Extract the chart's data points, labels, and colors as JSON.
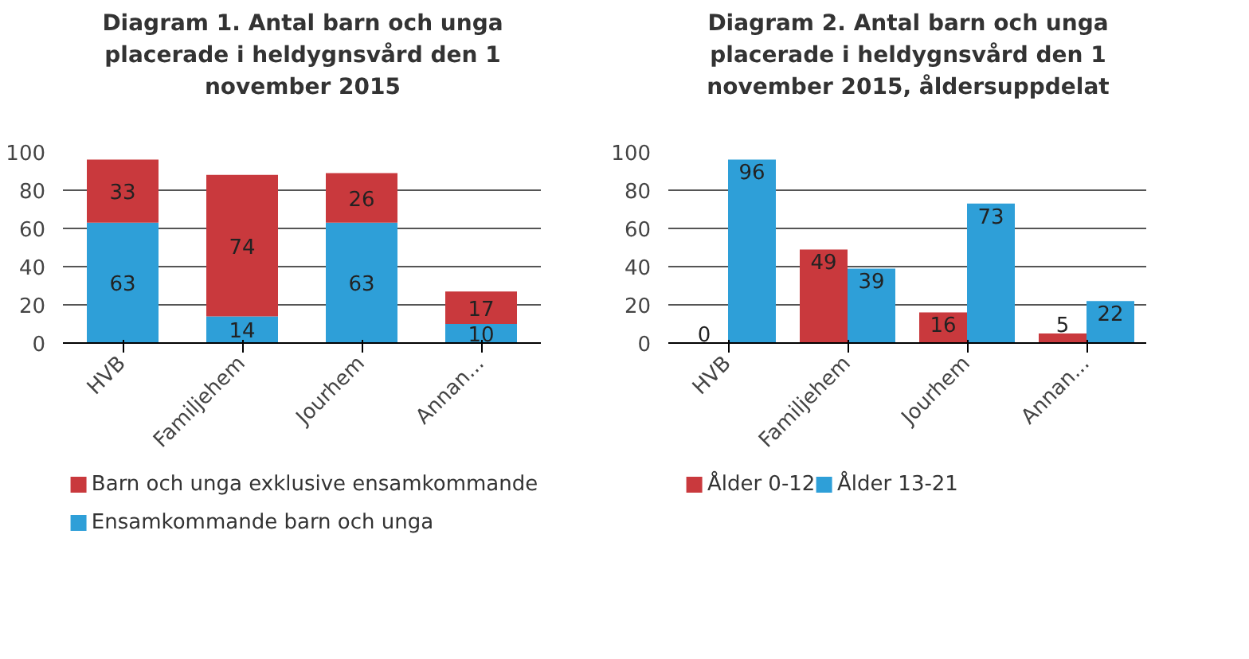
{
  "chart_data": [
    {
      "type": "bar",
      "title": "Diagram 1. Antal barn och unga placerade i heldygnsvård den 1 november 2015",
      "categories": [
        "HVB",
        "Familjehem",
        "Jourhem",
        "Annan..."
      ],
      "stacked": true,
      "series": [
        {
          "name": "Ensamkommande barn och unga",
          "color": "#2e9fd8",
          "values": [
            63,
            14,
            63,
            10
          ]
        },
        {
          "name": "Barn och unga exklusive ensamkommande",
          "color": "#c9393d",
          "values": [
            33,
            74,
            26,
            17
          ]
        }
      ],
      "ylim": [
        0,
        100
      ],
      "yticks": [
        0,
        20,
        40,
        60,
        80,
        100
      ],
      "grid": "y",
      "legend": "bottom",
      "data_labels": true
    },
    {
      "type": "bar",
      "title": "Diagram 2. Antal barn och unga placerade i heldygnsvård den 1 november 2015, åldersuppdelat",
      "categories": [
        "HVB",
        "Familjehem",
        "Jourhem",
        "Annan..."
      ],
      "series": [
        {
          "name": "Ålder 0-12",
          "color": "#c9393d",
          "values": [
            0,
            49,
            16,
            5
          ]
        },
        {
          "name": "Ålder 13-21",
          "color": "#2e9fd8",
          "values": [
            96,
            39,
            73,
            22
          ]
        }
      ],
      "ylim": [
        0,
        100
      ],
      "yticks": [
        0,
        20,
        40,
        60,
        80,
        100
      ],
      "grid": "y",
      "legend": "bottom",
      "data_labels": true
    }
  ]
}
